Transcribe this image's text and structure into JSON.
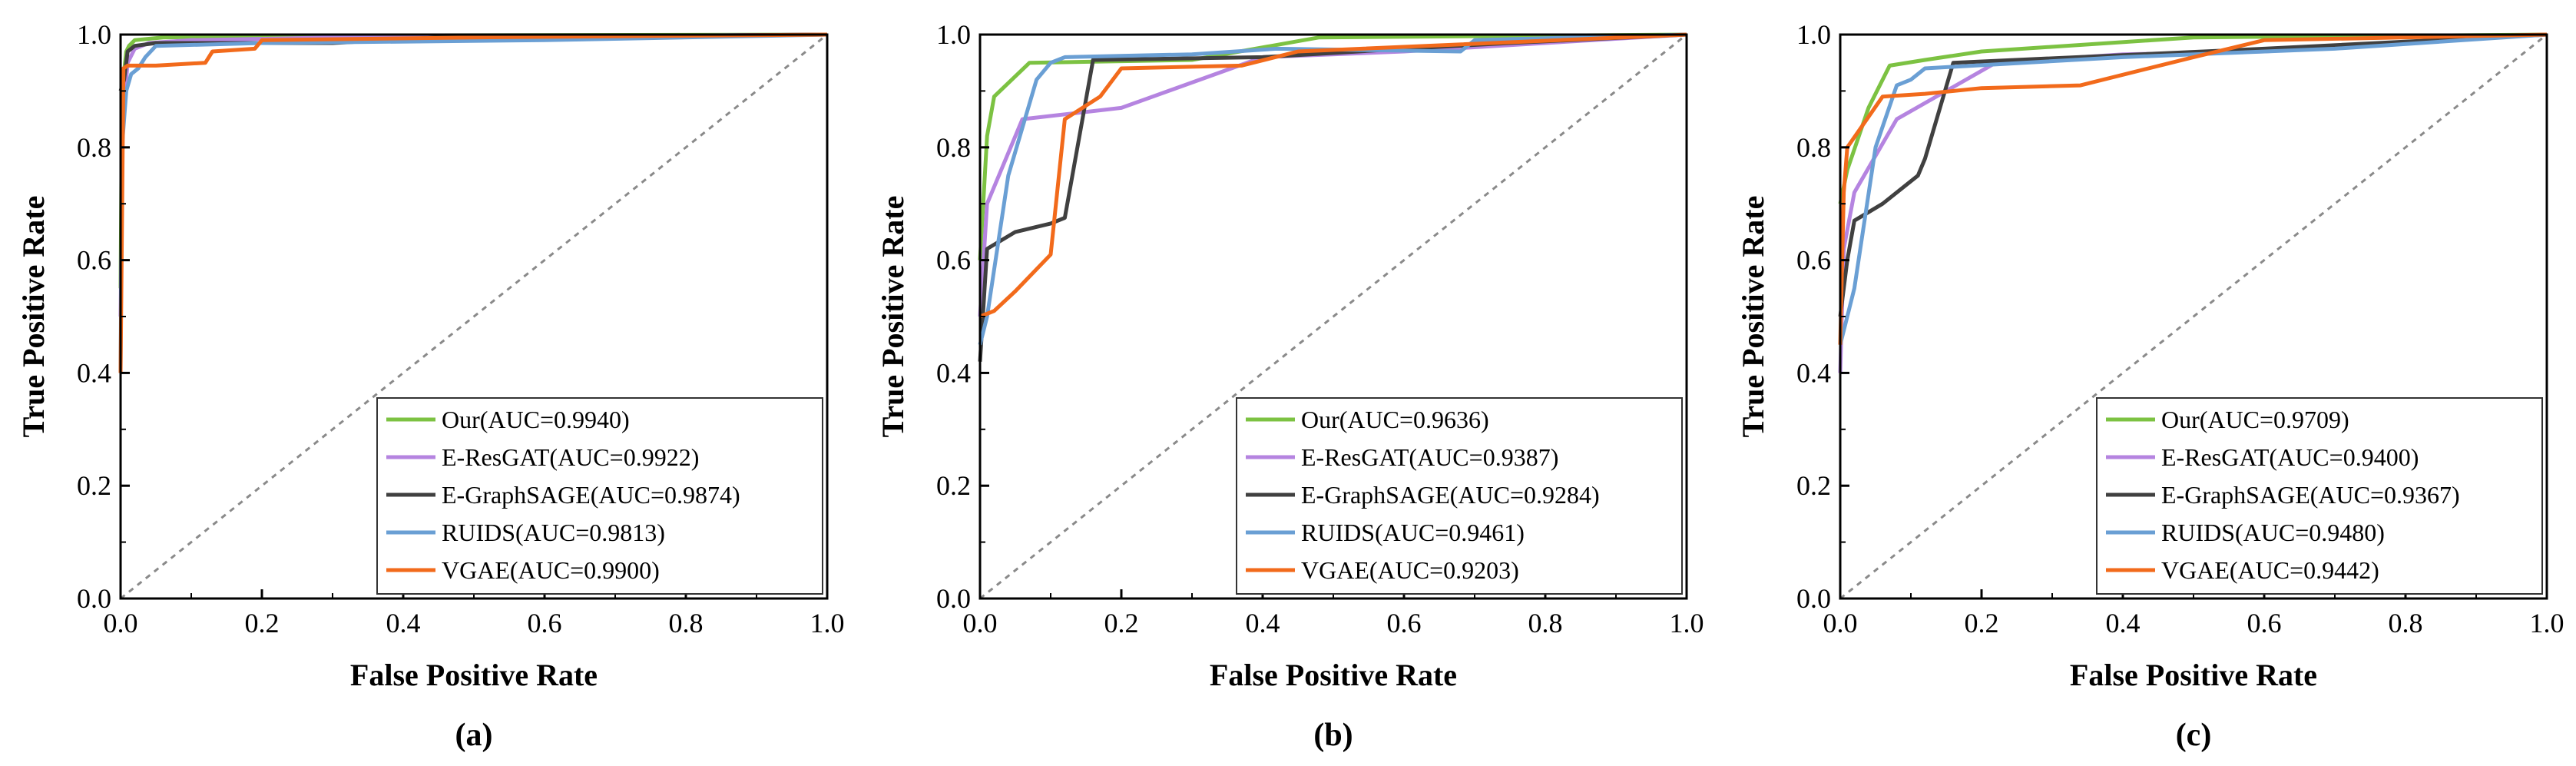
{
  "colors": {
    "our": "#7CC242",
    "eresgat": "#B584E0",
    "egraphsage": "#404040",
    "ruids": "#6A9FD4",
    "vgae": "#F26A1B",
    "diagonal": "#8A8A8A"
  },
  "chart_data": [
    {
      "type": "line",
      "panel_label": "(a)",
      "xlabel": "False Positive Rate",
      "ylabel": "True Positive Rate",
      "xlim": [
        0.0,
        1.0
      ],
      "ylim": [
        0.0,
        1.0
      ],
      "xticks": [
        "0.0",
        "0.2",
        "0.4",
        "0.6",
        "0.8",
        "1.0"
      ],
      "yticks": [
        "0.0",
        "0.2",
        "0.4",
        "0.6",
        "0.8",
        "1.0"
      ],
      "legend_position": "bottom-right",
      "series": [
        {
          "key": "our",
          "name": "Our(AUC=0.9940)",
          "x": [
            0,
            0.002,
            0.008,
            0.012,
            0.02,
            0.06,
            0.2,
            1.0
          ],
          "y": [
            0.55,
            0.9,
            0.97,
            0.98,
            0.99,
            0.995,
            0.998,
            1.0
          ]
        },
        {
          "key": "eresgat",
          "name": "E-ResGAT(AUC=0.9922)",
          "x": [
            0,
            0.003,
            0.01,
            0.02,
            0.04,
            0.1,
            0.3,
            1.0
          ],
          "y": [
            0.5,
            0.85,
            0.95,
            0.975,
            0.985,
            0.99,
            0.995,
            1.0
          ]
        },
        {
          "key": "egraphsage",
          "name": "E-GraphSAGE(AUC=0.9874)",
          "x": [
            0,
            0.005,
            0.01,
            0.015,
            0.02,
            0.05,
            0.3,
            0.45,
            1.0
          ],
          "y": [
            0.9,
            0.92,
            0.97,
            0.975,
            0.98,
            0.985,
            0.985,
            0.995,
            1.0
          ]
        },
        {
          "key": "ruids",
          "name": "RUIDS(AUC=0.9813)",
          "x": [
            0,
            0.002,
            0.008,
            0.015,
            0.025,
            0.035,
            0.05,
            0.2,
            0.6,
            1.0
          ],
          "y": [
            0.4,
            0.8,
            0.9,
            0.93,
            0.94,
            0.96,
            0.98,
            0.985,
            0.99,
            1.0
          ]
        },
        {
          "key": "vgae",
          "name": "VGAE(AUC=0.9900)",
          "x": [
            0,
            0.004,
            0.01,
            0.02,
            0.05,
            0.12,
            0.13,
            0.19,
            0.2,
            0.5,
            1.0
          ],
          "y": [
            0.4,
            0.94,
            0.945,
            0.945,
            0.945,
            0.95,
            0.97,
            0.975,
            0.99,
            0.995,
            1.0
          ]
        }
      ]
    },
    {
      "type": "line",
      "panel_label": "(b)",
      "xlabel": "False Positive Rate",
      "ylabel": "True Positive Rate",
      "xlim": [
        0.0,
        1.0
      ],
      "ylim": [
        0.0,
        1.0
      ],
      "xticks": [
        "0.0",
        "0.2",
        "0.4",
        "0.6",
        "0.8",
        "1.0"
      ],
      "yticks": [
        "0.0",
        "0.2",
        "0.4",
        "0.6",
        "0.8",
        "1.0"
      ],
      "legend_position": "bottom-right",
      "series": [
        {
          "key": "our",
          "name": "Our(AUC=0.9636)",
          "x": [
            0,
            0.01,
            0.02,
            0.07,
            0.3,
            0.48,
            1.0
          ],
          "y": [
            0.6,
            0.82,
            0.89,
            0.95,
            0.955,
            0.995,
            1.0
          ]
        },
        {
          "key": "eresgat",
          "name": "E-ResGAT(AUC=0.9387)",
          "x": [
            0,
            0.01,
            0.06,
            0.2,
            0.4,
            0.6,
            1.0
          ],
          "y": [
            0.5,
            0.7,
            0.85,
            0.87,
            0.96,
            0.97,
            1.0
          ]
        },
        {
          "key": "egraphsage",
          "name": "E-GraphSAGE(AUC=0.9284)",
          "x": [
            0,
            0.01,
            0.05,
            0.1,
            0.12,
            0.16,
            0.4,
            0.6,
            0.75,
            1.0
          ],
          "y": [
            0.42,
            0.62,
            0.65,
            0.665,
            0.675,
            0.955,
            0.96,
            0.975,
            0.985,
            1.0
          ]
        },
        {
          "key": "ruids",
          "name": "RUIDS(AUC=0.9461)",
          "x": [
            0,
            0.01,
            0.04,
            0.08,
            0.1,
            0.12,
            0.3,
            0.42,
            0.68,
            0.7,
            1.0
          ],
          "y": [
            0.45,
            0.5,
            0.75,
            0.92,
            0.95,
            0.96,
            0.965,
            0.975,
            0.97,
            0.99,
            1.0
          ]
        },
        {
          "key": "vgae",
          "name": "VGAE(AUC=0.9203)",
          "x": [
            0,
            0.02,
            0.05,
            0.1,
            0.12,
            0.17,
            0.2,
            0.37,
            0.45,
            1.0
          ],
          "y": [
            0.5,
            0.51,
            0.545,
            0.61,
            0.85,
            0.89,
            0.94,
            0.945,
            0.97,
            1.0
          ]
        }
      ]
    },
    {
      "type": "line",
      "panel_label": "(c)",
      "xlabel": "False Positive Rate",
      "ylabel": "True Positive Rate",
      "xlim": [
        0.0,
        1.0
      ],
      "ylim": [
        0.0,
        1.0
      ],
      "xticks": [
        "0.0",
        "0.2",
        "0.4",
        "0.6",
        "0.8",
        "1.0"
      ],
      "yticks": [
        "0.0",
        "0.2",
        "0.4",
        "0.6",
        "0.8",
        "1.0"
      ],
      "legend_position": "bottom-right",
      "series": [
        {
          "key": "our",
          "name": "Our(AUC=0.9709)",
          "x": [
            0,
            0.01,
            0.04,
            0.07,
            0.12,
            0.2,
            0.5,
            1.0
          ],
          "y": [
            0.7,
            0.76,
            0.87,
            0.945,
            0.955,
            0.97,
            0.995,
            1.0
          ]
        },
        {
          "key": "eresgat",
          "name": "E-ResGAT(AUC=0.9400)",
          "x": [
            0,
            0.005,
            0.02,
            0.08,
            0.15,
            0.22,
            0.4,
            0.6,
            1.0
          ],
          "y": [
            0.4,
            0.62,
            0.72,
            0.85,
            0.9,
            0.95,
            0.965,
            0.97,
            1.0
          ]
        },
        {
          "key": "egraphsage",
          "name": "E-GraphSAGE(AUC=0.9367)",
          "x": [
            0,
            0.01,
            0.02,
            0.06,
            0.11,
            0.12,
            0.16,
            0.6,
            1.0
          ],
          "y": [
            0.5,
            0.6,
            0.67,
            0.7,
            0.75,
            0.78,
            0.95,
            0.975,
            1.0
          ]
        },
        {
          "key": "ruids",
          "name": "RUIDS(AUC=0.9480)",
          "x": [
            0,
            0.02,
            0.05,
            0.08,
            0.1,
            0.12,
            0.4,
            0.7,
            1.0
          ],
          "y": [
            0.45,
            0.55,
            0.8,
            0.91,
            0.92,
            0.94,
            0.96,
            0.975,
            1.0
          ]
        },
        {
          "key": "vgae",
          "name": "VGAE(AUC=0.9442)",
          "x": [
            0,
            0.005,
            0.01,
            0.06,
            0.12,
            0.2,
            0.34,
            0.5,
            0.6,
            1.0
          ],
          "y": [
            0.45,
            0.72,
            0.8,
            0.89,
            0.895,
            0.905,
            0.91,
            0.96,
            0.99,
            1.0
          ]
        }
      ]
    }
  ]
}
